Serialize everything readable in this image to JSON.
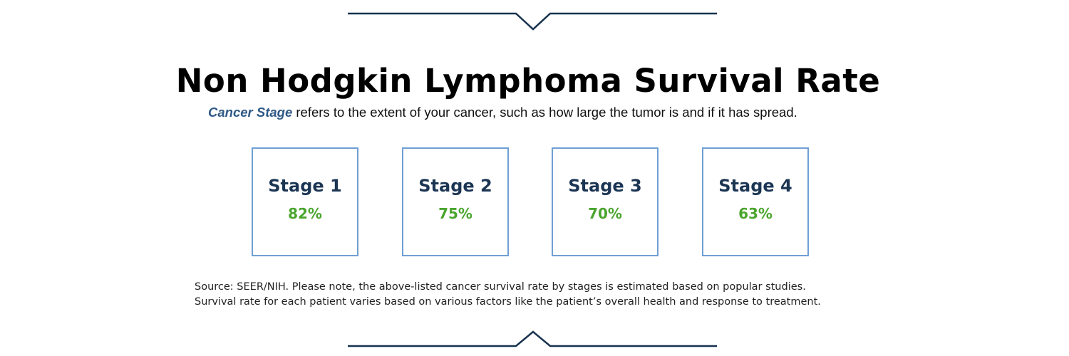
{
  "header": {
    "title": "Non Hodgkin Lymphoma Survival Rate",
    "subtitle_emphasis": "Cancer Stage",
    "subtitle_rest": " refers to the extent of your cancer, such as how large the tumor is and if it has spread."
  },
  "stages": [
    {
      "label": "Stage 1",
      "value": "82%"
    },
    {
      "label": "Stage 2",
      "value": "75%"
    },
    {
      "label": "Stage 3",
      "value": "70%"
    },
    {
      "label": "Stage 4",
      "value": "63%"
    }
  ],
  "footer": {
    "line1": "Source: SEER/NIH. Please note, the above-listed cancer survival rate by stages is estimated based on popular studies.",
    "line2": "Survival rate for each patient varies based on various factors like the patient’s overall health and response to treatment."
  },
  "colors": {
    "divider": "#17324f",
    "card_border": "#6f9fd3",
    "stage_label": "#1b3553",
    "stage_value": "#4aa52e",
    "emphasis": "#2f5a87"
  },
  "icons": {
    "top_divider": "chevron-down-divider",
    "bottom_divider": "chevron-up-divider"
  }
}
